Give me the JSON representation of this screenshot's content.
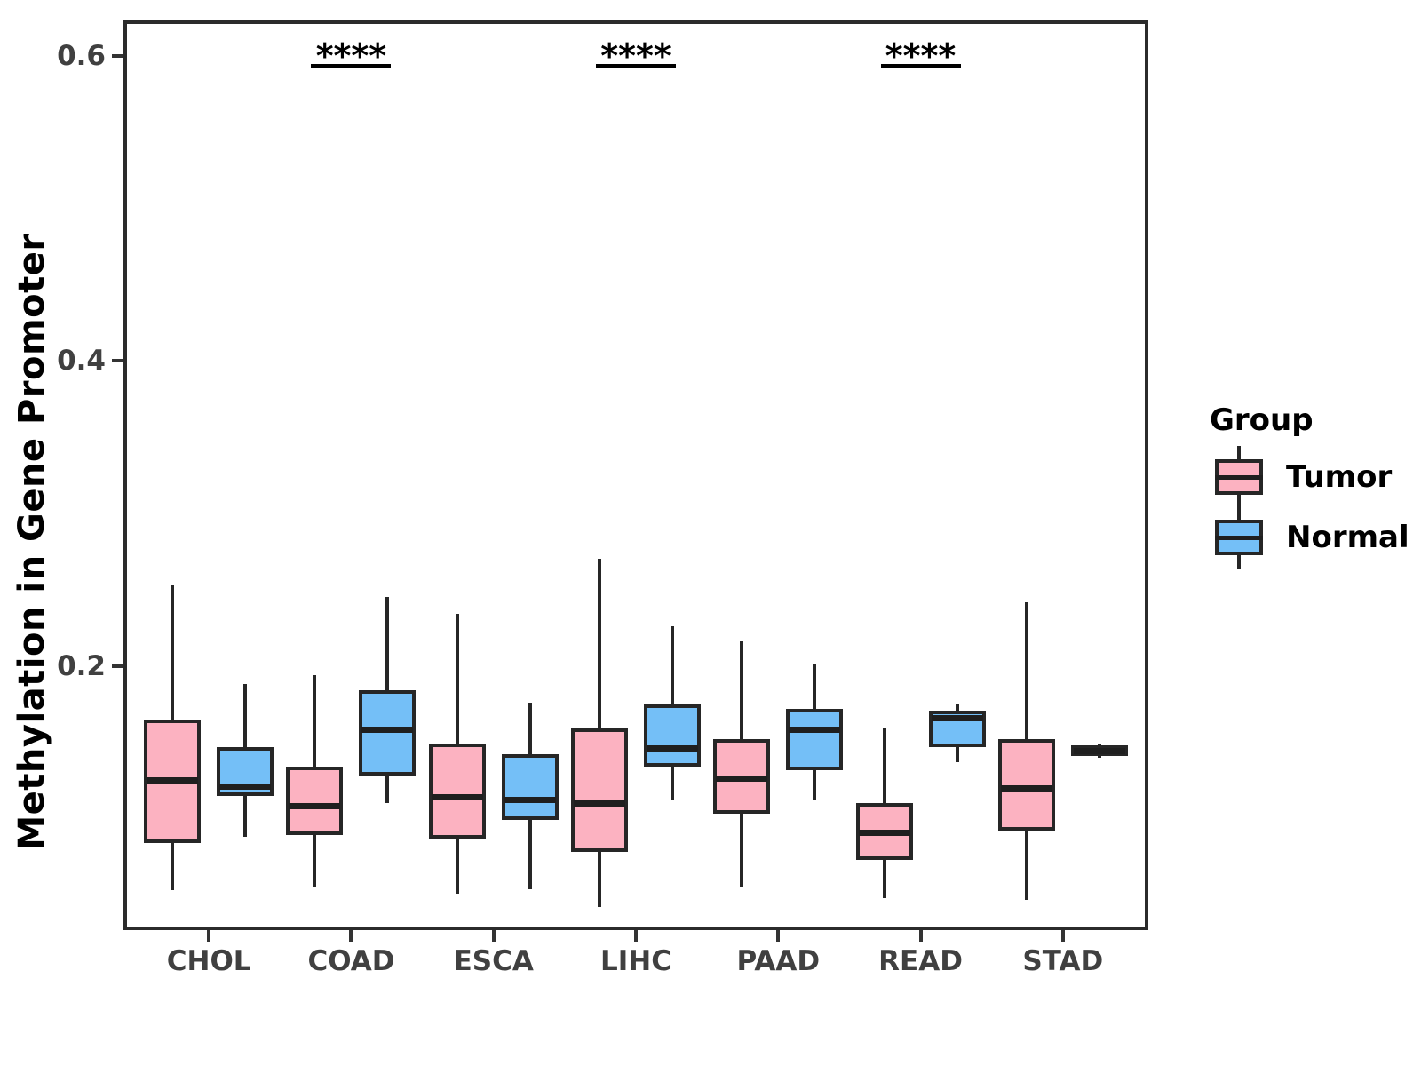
{
  "chart_data": {
    "type": "grouped_boxplot",
    "title": "",
    "xlabel": "",
    "ylabel": "Methylation in Gene Promoter",
    "categories": [
      "CHOL",
      "COAD",
      "ESCA",
      "LIHC",
      "PAAD",
      "READ",
      "STAD"
    ],
    "y_ticks": [
      0.2,
      0.4,
      0.6
    ],
    "y_tick_labels": [
      "0.2",
      "0.4",
      "0.6"
    ],
    "ylim": [
      0.027,
      0.623
    ],
    "grid": "off",
    "legend": {
      "title": "Group",
      "position": "right",
      "entries": [
        {
          "label": "Tumor",
          "color": "#FCB2C1"
        },
        {
          "label": "Normal",
          "color": "#74BFF7"
        }
      ]
    },
    "series": [
      {
        "name": "Tumor",
        "color": "#FCB2C1",
        "boxes": [
          {
            "category": "CHOL",
            "min": 0.053,
            "q1": 0.084,
            "median": 0.125,
            "q3": 0.165,
            "max": 0.253
          },
          {
            "category": "COAD",
            "min": 0.055,
            "q1": 0.089,
            "median": 0.108,
            "q3": 0.134,
            "max": 0.194
          },
          {
            "category": "ESCA",
            "min": 0.051,
            "q1": 0.087,
            "median": 0.114,
            "q3": 0.149,
            "max": 0.234
          },
          {
            "category": "LIHC",
            "min": 0.042,
            "q1": 0.078,
            "median": 0.11,
            "q3": 0.159,
            "max": 0.27
          },
          {
            "category": "PAAD",
            "min": 0.055,
            "q1": 0.103,
            "median": 0.126,
            "q3": 0.152,
            "max": 0.216
          },
          {
            "category": "READ",
            "min": 0.048,
            "q1": 0.073,
            "median": 0.091,
            "q3": 0.11,
            "max": 0.159
          },
          {
            "category": "STAD",
            "min": 0.047,
            "q1": 0.092,
            "median": 0.12,
            "q3": 0.152,
            "max": 0.242
          }
        ]
      },
      {
        "name": "Normal",
        "color": "#74BFF7",
        "boxes": [
          {
            "category": "CHOL",
            "min": 0.088,
            "q1": 0.115,
            "median": 0.121,
            "q3": 0.147,
            "max": 0.188
          },
          {
            "category": "COAD",
            "min": 0.11,
            "q1": 0.128,
            "median": 0.158,
            "q3": 0.184,
            "max": 0.245
          },
          {
            "category": "ESCA",
            "min": 0.054,
            "q1": 0.099,
            "median": 0.112,
            "q3": 0.142,
            "max": 0.176
          },
          {
            "category": "LIHC",
            "min": 0.112,
            "q1": 0.134,
            "median": 0.146,
            "q3": 0.175,
            "max": 0.226
          },
          {
            "category": "PAAD",
            "min": 0.112,
            "q1": 0.132,
            "median": 0.158,
            "q3": 0.172,
            "max": 0.201
          },
          {
            "category": "READ",
            "min": 0.137,
            "q1": 0.147,
            "median": 0.166,
            "q3": 0.171,
            "max": 0.175
          },
          {
            "category": "STAD",
            "min": 0.14,
            "q1": 0.141,
            "median": 0.144,
            "q3": 0.148,
            "max": 0.149
          }
        ]
      }
    ],
    "significance": [
      {
        "category": "COAD",
        "label": "****"
      },
      {
        "category": "LIHC",
        "label": "****"
      },
      {
        "category": "READ",
        "label": "****"
      }
    ]
  },
  "style": {
    "tumor_fill": "#FCB2C1",
    "normal_fill": "#74BFF7",
    "box_border": "#262626",
    "median_color": "#1F1F1F",
    "panel_border": "#2B2B2B",
    "axis_text": "#404040",
    "title_text": "#000000"
  }
}
